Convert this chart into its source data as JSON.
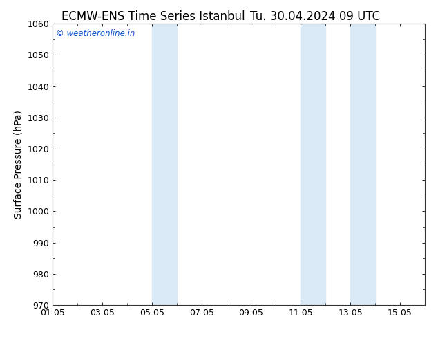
{
  "title": "ECMW-ENS Time Series Istanbul",
  "title2": "Tu. 30.04.2024 09 UTC",
  "ylabel": "Surface Pressure (hPa)",
  "ylim": [
    970,
    1060
  ],
  "yticks": [
    970,
    980,
    990,
    1000,
    1010,
    1020,
    1030,
    1040,
    1050,
    1060
  ],
  "xlim_start": 0.0,
  "xlim_end": 15.0,
  "xtick_labels": [
    "01.05",
    "03.05",
    "05.05",
    "07.05",
    "09.05",
    "11.05",
    "13.05",
    "15.05"
  ],
  "xtick_positions": [
    0,
    2,
    4,
    6,
    8,
    10,
    12,
    14
  ],
  "shaded_bands": [
    {
      "xmin": 4.0,
      "xmax": 5.0
    },
    {
      "xmin": 10.0,
      "xmax": 11.0
    },
    {
      "xmin": 12.0,
      "xmax": 13.0
    }
  ],
  "shade_color": "#daeaf7",
  "watermark": "© weatheronline.in",
  "watermark_color": "#1155cc",
  "bg_color": "#ffffff",
  "axes_bg_color": "#ffffff",
  "title_fontsize": 12,
  "label_fontsize": 10,
  "tick_fontsize": 9
}
